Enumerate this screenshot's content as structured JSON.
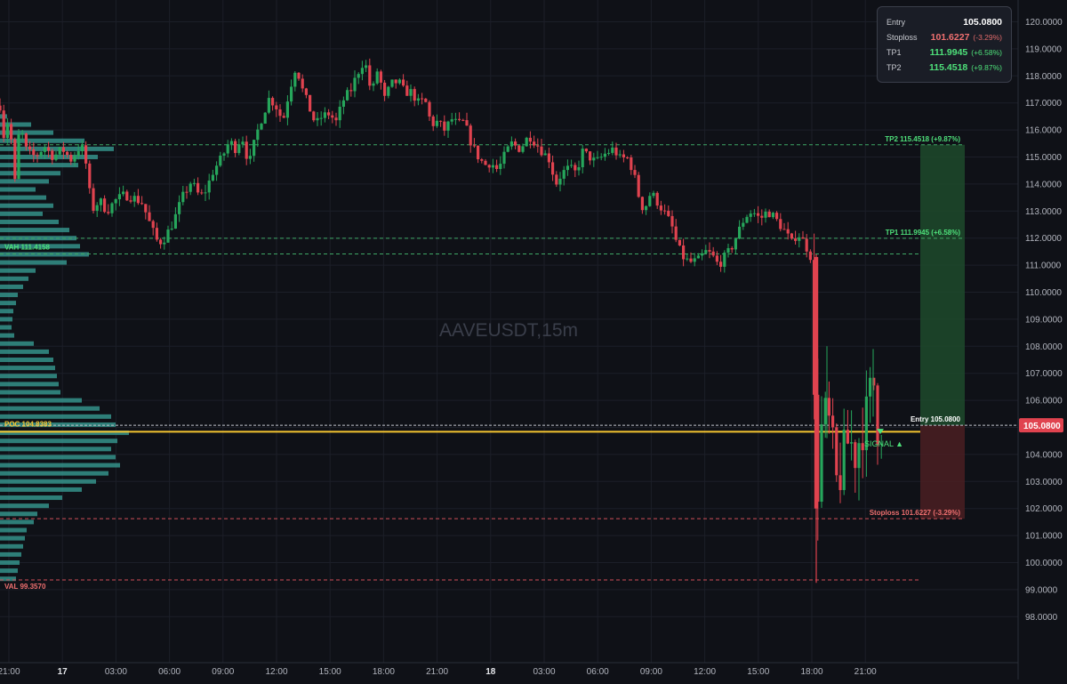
{
  "symbol_watermark": "AAVEUSDT,15m",
  "info_panel": {
    "rows": [
      {
        "label": "Entry",
        "value": "105.0800",
        "pct": "",
        "kind": "entry"
      },
      {
        "label": "Stoploss",
        "value": "101.6227",
        "pct": "(-3.29%)",
        "kind": "stop"
      },
      {
        "label": "TP1",
        "value": "111.9945",
        "pct": "(+6.58%)",
        "kind": "tp"
      },
      {
        "label": "TP2",
        "value": "115.4518",
        "pct": "(+9.87%)",
        "kind": "tp"
      }
    ]
  },
  "colors": {
    "background": "#0f1117",
    "grid": "#1c1f28",
    "up": "#26a65b",
    "down": "#e0434f",
    "profile": "#3aa39a",
    "poc": "#f4c430",
    "tp_zone": "#1d4a2c",
    "stop_zone": "#4a1e22",
    "entry_label_bg": "#e0434f"
  },
  "chart_data": {
    "type": "candlestick",
    "title": "AAVEUSDT,15m",
    "y_range": [
      97.5,
      120.5
    ],
    "y_ticks": [
      "120.0000",
      "119.0000",
      "118.0000",
      "117.0000",
      "116.0000",
      "115.0000",
      "114.0000",
      "113.0000",
      "112.0000",
      "111.0000",
      "110.0000",
      "109.0000",
      "108.0000",
      "107.0000",
      "106.0000",
      "105.0000",
      "104.0000",
      "103.0000",
      "102.0000",
      "101.0000",
      "100.0000",
      "99.0000",
      "98.0000"
    ],
    "x_ticks": [
      {
        "label": "21:00",
        "bold": false
      },
      {
        "label": "17",
        "bold": true
      },
      {
        "label": "03:00",
        "bold": false
      },
      {
        "label": "06:00",
        "bold": false
      },
      {
        "label": "09:00",
        "bold": false
      },
      {
        "label": "12:00",
        "bold": false
      },
      {
        "label": "15:00",
        "bold": false
      },
      {
        "label": "18:00",
        "bold": false
      },
      {
        "label": "21:00",
        "bold": false
      },
      {
        "label": "18",
        "bold": true
      },
      {
        "label": "03:00",
        "bold": false
      },
      {
        "label": "06:00",
        "bold": false
      },
      {
        "label": "09:00",
        "bold": false
      },
      {
        "label": "12:00",
        "bold": false
      },
      {
        "label": "15:00",
        "bold": false
      },
      {
        "label": "18:00",
        "bold": false
      },
      {
        "label": "21:00",
        "bold": false
      }
    ],
    "levels": [
      {
        "name": "TP2",
        "value": 115.4518,
        "label": "TP2 115.4518 (+9.87%)",
        "kind": "tp"
      },
      {
        "name": "TP1",
        "value": 111.9945,
        "label": "TP1 111.9945 (+6.58%)",
        "kind": "tp"
      },
      {
        "name": "VAH",
        "value": 111.4158,
        "label": "VAH 111.4158",
        "kind": "vah"
      },
      {
        "name": "Entry",
        "value": 105.08,
        "label": "Entry 105.0800",
        "kind": "entry"
      },
      {
        "name": "POC",
        "value": 104.8383,
        "label": "POC 104.8383",
        "kind": "poc"
      },
      {
        "name": "Stoploss",
        "value": 101.6227,
        "label": "Stoploss 101.6227 (-3.29%)",
        "kind": "stop"
      },
      {
        "name": "VAL",
        "value": 99.357,
        "label": "VAL 99.3570",
        "kind": "val"
      }
    ],
    "price_label": "105.0800",
    "signal_label": "SIGNAL ▲",
    "path": [
      [
        0,
        116.9
      ],
      [
        5,
        115.6
      ],
      [
        10,
        116.6
      ],
      [
        17,
        114.0
      ],
      [
        22,
        116.2
      ],
      [
        30,
        115.2
      ],
      [
        40,
        115.0
      ],
      [
        50,
        115.4
      ],
      [
        60,
        115.0
      ],
      [
        70,
        115.3
      ],
      [
        80,
        114.9
      ],
      [
        90,
        115.4
      ],
      [
        95,
        115.2
      ],
      [
        100,
        113.8
      ],
      [
        105,
        113.1
      ],
      [
        112,
        113.4
      ],
      [
        120,
        113.0
      ],
      [
        130,
        113.4
      ],
      [
        140,
        113.6
      ],
      [
        150,
        113.5
      ],
      [
        160,
        113.3
      ],
      [
        170,
        112.4
      ],
      [
        178,
        111.8
      ],
      [
        185,
        112.0
      ],
      [
        195,
        112.6
      ],
      [
        205,
        113.5
      ],
      [
        215,
        114.1
      ],
      [
        225,
        113.5
      ],
      [
        232,
        113.8
      ],
      [
        240,
        114.5
      ],
      [
        250,
        115.0
      ],
      [
        258,
        115.6
      ],
      [
        265,
        115.3
      ],
      [
        272,
        115.8
      ],
      [
        280,
        114.7
      ],
      [
        288,
        115.8
      ],
      [
        295,
        116.5
      ],
      [
        303,
        117.2
      ],
      [
        312,
        116.8
      ],
      [
        318,
        116.3
      ],
      [
        325,
        117.4
      ],
      [
        333,
        118.4
      ],
      [
        340,
        117.5
      ],
      [
        348,
        116.8
      ],
      [
        355,
        116.2
      ],
      [
        362,
        116.5
      ],
      [
        370,
        116.6
      ],
      [
        378,
        116.3
      ],
      [
        386,
        117.1
      ],
      [
        395,
        117.5
      ],
      [
        402,
        118.1
      ],
      [
        410,
        118.6
      ],
      [
        418,
        117.3
      ],
      [
        425,
        118.3
      ],
      [
        432,
        117.1
      ],
      [
        440,
        117.7
      ],
      [
        448,
        117.8
      ],
      [
        455,
        117.4
      ],
      [
        463,
        117.4
      ],
      [
        470,
        117.0
      ],
      [
        478,
        117.1
      ],
      [
        485,
        116.2
      ],
      [
        492,
        116.3
      ],
      [
        500,
        116.0
      ],
      [
        508,
        116.4
      ],
      [
        515,
        116.2
      ],
      [
        522,
        116.3
      ],
      [
        530,
        115.5
      ],
      [
        538,
        115.0
      ],
      [
        545,
        114.7
      ],
      [
        552,
        114.8
      ],
      [
        560,
        114.5
      ],
      [
        568,
        115.1
      ],
      [
        575,
        115.5
      ],
      [
        585,
        115.3
      ],
      [
        595,
        115.8
      ],
      [
        603,
        115.5
      ],
      [
        610,
        115.2
      ],
      [
        618,
        114.9
      ],
      [
        625,
        114.0
      ],
      [
        632,
        114.4
      ],
      [
        640,
        114.6
      ],
      [
        648,
        114.4
      ],
      [
        655,
        115.2
      ],
      [
        663,
        115.0
      ],
      [
        670,
        114.8
      ],
      [
        680,
        115.1
      ],
      [
        690,
        115.3
      ],
      [
        698,
        114.9
      ],
      [
        705,
        115.0
      ],
      [
        712,
        114.5
      ],
      [
        718,
        113.6
      ],
      [
        724,
        113.0
      ],
      [
        732,
        113.7
      ],
      [
        740,
        113.3
      ],
      [
        748,
        112.9
      ],
      [
        755,
        112.5
      ],
      [
        762,
        111.7
      ],
      [
        770,
        111.2
      ],
      [
        778,
        111.1
      ],
      [
        786,
        111.2
      ],
      [
        793,
        111.5
      ],
      [
        800,
        111.4
      ],
      [
        808,
        111.0
      ],
      [
        815,
        111.3
      ],
      [
        822,
        111.6
      ],
      [
        830,
        112.2
      ],
      [
        838,
        112.8
      ],
      [
        846,
        113.0
      ],
      [
        855,
        112.7
      ],
      [
        863,
        113.0
      ],
      [
        870,
        112.8
      ],
      [
        877,
        112.5
      ],
      [
        884,
        112.2
      ],
      [
        890,
        111.8
      ],
      [
        897,
        112.2
      ],
      [
        905,
        111.8
      ],
      [
        912,
        111.3
      ],
      [
        918,
        102.0
      ],
      [
        924,
        104.9
      ],
      [
        930,
        105.6
      ],
      [
        936,
        104.3
      ],
      [
        942,
        102.6
      ],
      [
        948,
        103.9
      ],
      [
        955,
        104.6
      ],
      [
        962,
        104.0
      ],
      [
        968,
        104.8
      ],
      [
        975,
        105.5
      ],
      [
        982,
        106.9
      ],
      [
        987,
        105.1
      ],
      [
        993,
        105.08
      ]
    ],
    "volume_profile": [
      {
        "price": 116.5,
        "length": 8
      },
      {
        "price": 116.2,
        "length": 35
      },
      {
        "price": 115.9,
        "length": 60
      },
      {
        "price": 115.6,
        "length": 95
      },
      {
        "price": 115.3,
        "length": 128
      },
      {
        "price": 115.0,
        "length": 110
      },
      {
        "price": 114.7,
        "length": 88
      },
      {
        "price": 114.4,
        "length": 68
      },
      {
        "price": 114.1,
        "length": 55
      },
      {
        "price": 113.8,
        "length": 40
      },
      {
        "price": 113.5,
        "length": 52
      },
      {
        "price": 113.2,
        "length": 60
      },
      {
        "price": 112.9,
        "length": 48
      },
      {
        "price": 112.6,
        "length": 66
      },
      {
        "price": 112.3,
        "length": 78
      },
      {
        "price": 112.0,
        "length": 86
      },
      {
        "price": 111.7,
        "length": 90
      },
      {
        "price": 111.4,
        "length": 100
      },
      {
        "price": 111.1,
        "length": 75
      },
      {
        "price": 110.8,
        "length": 40
      },
      {
        "price": 110.5,
        "length": 32
      },
      {
        "price": 110.2,
        "length": 26
      },
      {
        "price": 109.9,
        "length": 20
      },
      {
        "price": 109.6,
        "length": 18
      },
      {
        "price": 109.3,
        "length": 15
      },
      {
        "price": 109.0,
        "length": 14
      },
      {
        "price": 108.7,
        "length": 13
      },
      {
        "price": 108.4,
        "length": 16
      },
      {
        "price": 108.1,
        "length": 38
      },
      {
        "price": 107.8,
        "length": 55
      },
      {
        "price": 107.5,
        "length": 60
      },
      {
        "price": 107.2,
        "length": 62
      },
      {
        "price": 106.9,
        "length": 64
      },
      {
        "price": 106.6,
        "length": 66
      },
      {
        "price": 106.3,
        "length": 68
      },
      {
        "price": 106.0,
        "length": 92
      },
      {
        "price": 105.7,
        "length": 112
      },
      {
        "price": 105.4,
        "length": 125
      },
      {
        "price": 105.1,
        "length": 130
      },
      {
        "price": 104.8,
        "length": 145
      },
      {
        "price": 104.5,
        "length": 132
      },
      {
        "price": 104.2,
        "length": 125
      },
      {
        "price": 103.9,
        "length": 130
      },
      {
        "price": 103.6,
        "length": 135
      },
      {
        "price": 103.3,
        "length": 122
      },
      {
        "price": 103.0,
        "length": 108
      },
      {
        "price": 102.7,
        "length": 92
      },
      {
        "price": 102.4,
        "length": 70
      },
      {
        "price": 102.1,
        "length": 55
      },
      {
        "price": 101.8,
        "length": 42
      },
      {
        "price": 101.5,
        "length": 38
      },
      {
        "price": 101.2,
        "length": 30
      },
      {
        "price": 100.9,
        "length": 28
      },
      {
        "price": 100.6,
        "length": 26
      },
      {
        "price": 100.3,
        "length": 24
      },
      {
        "price": 100.0,
        "length": 22
      },
      {
        "price": 99.7,
        "length": 20
      },
      {
        "price": 99.4,
        "length": 18
      }
    ]
  }
}
